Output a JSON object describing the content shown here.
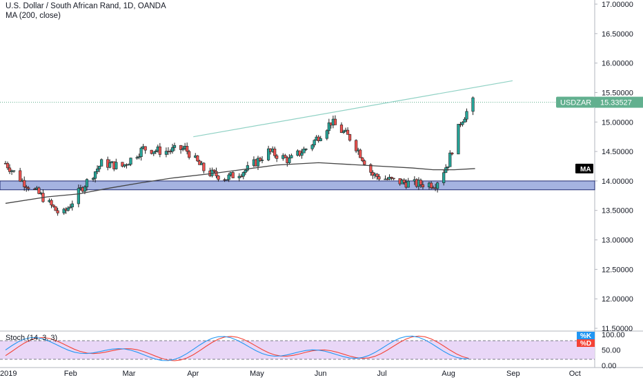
{
  "header": {
    "title": "U.S. Dollar / South African Rand, 1D, OANDA",
    "indicator": "MA (200, close)",
    "stoch": "Stoch (14, 3, 3)"
  },
  "labels": {
    "symbol": "USDZAR",
    "price": "15.33527",
    "ma": "MA",
    "k": "%K",
    "d": "%D"
  },
  "colors": {
    "up": "#26a69a",
    "down": "#ef5350",
    "wick": "#1e1e1e",
    "ma": "#444444",
    "zone": "#5b74c8",
    "trendline": "#8fd1c4",
    "price_badge": "#62b08f",
    "stoch_k": "#2196f3",
    "stoch_d": "#f44336",
    "stoch_band": "#e9d7f7"
  },
  "chart_data": {
    "type": "candlestick",
    "title": "U.S. Dollar / South African Rand, 1D, OANDA",
    "ylim": [
      11.5,
      17.0
    ],
    "y_ticks": [
      "17.00000",
      "16.50000",
      "16.00000",
      "15.50000",
      "15.00000",
      "14.50000",
      "14.00000",
      "13.50000",
      "13.00000",
      "12.50000",
      "12.00000",
      "11.50000"
    ],
    "x_ticks": [
      "2019",
      "Feb",
      "Mar",
      "Apr",
      "May",
      "Jun",
      "Jul",
      "Aug",
      "Sep",
      "Oct"
    ],
    "x_tick_days": [
      0,
      31,
      59,
      90,
      120,
      151,
      181,
      212,
      243,
      273
    ],
    "last_price": 15.33527,
    "support_zone": [
      13.85,
      14.0
    ],
    "trendline": {
      "from": [
        "Apr",
        14.75
      ],
      "to": [
        "Sep",
        15.7
      ]
    },
    "ma200_points": [
      [
        0,
        13.62
      ],
      [
        20,
        13.73
      ],
      [
        35,
        13.78
      ],
      [
        50,
        13.88
      ],
      [
        65,
        13.97
      ],
      [
        80,
        14.05
      ],
      [
        100,
        14.13
      ],
      [
        115,
        14.2
      ],
      [
        130,
        14.27
      ],
      [
        150,
        14.31
      ],
      [
        165,
        14.28
      ],
      [
        180,
        14.25
      ],
      [
        195,
        14.22
      ],
      [
        205,
        14.19
      ],
      [
        215,
        14.19
      ],
      [
        225,
        14.21
      ]
    ],
    "candles_weekly_closes": [
      [
        0,
        14.3
      ],
      [
        8,
        14.0
      ],
      [
        17,
        13.75
      ],
      [
        27,
        13.4
      ],
      [
        37,
        13.9
      ],
      [
        46,
        14.3
      ],
      [
        56,
        14.25
      ],
      [
        66,
        14.55
      ],
      [
        76,
        14.5
      ],
      [
        86,
        14.55
      ],
      [
        96,
        14.15
      ],
      [
        106,
        14.05
      ],
      [
        116,
        14.2
      ],
      [
        126,
        14.5
      ],
      [
        136,
        14.35
      ],
      [
        146,
        14.6
      ],
      [
        156,
        15.0
      ],
      [
        166,
        14.7
      ],
      [
        176,
        14.1
      ],
      [
        186,
        14.0
      ],
      [
        196,
        13.95
      ],
      [
        206,
        13.95
      ],
      [
        212,
        14.3
      ],
      [
        218,
        15.0
      ],
      [
        224,
        15.34
      ]
    ],
    "stoch": {
      "ylim": [
        0,
        100
      ],
      "levels": [
        80,
        20
      ],
      "ticks": [
        "100.00",
        "50.00",
        "0.00"
      ]
    }
  }
}
